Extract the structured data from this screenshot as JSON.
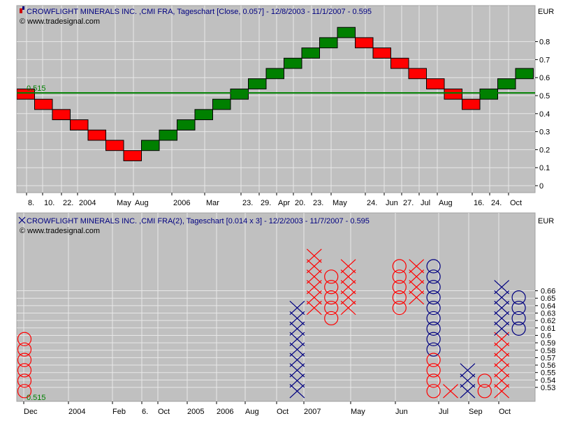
{
  "chart_data": [
    {
      "type": "renko",
      "title": "CROWFLIGHT MINERALS INC. ,CMI FRA, Tageschart [Close, 0.057] - 12/8/2003 - 11/1/2007 - 0.595",
      "source": "© www.tradesignal.com",
      "currency": "EUR",
      "box_size": 0.057,
      "ylim": [
        0,
        0.9
      ],
      "y_ticks": [
        "0",
        "0.1",
        "0.2",
        "0.3",
        "0.4",
        "0.5",
        "0.6",
        "0.7",
        "0.8"
      ],
      "x_ticks": [
        "8.",
        "10.",
        "22.",
        "2004",
        "May",
        "Aug",
        "2006",
        "Mar",
        "23.",
        "29.",
        "Apr",
        "20.",
        "23.",
        "May",
        "24.",
        "Jun",
        "27.",
        "Jul",
        "Aug",
        "16.",
        "24.",
        "Oct"
      ],
      "reference_line": {
        "value": 0.515,
        "label": "0.515"
      },
      "bricks": [
        {
          "dir": "down",
          "low": 0.48,
          "high": 0.537
        },
        {
          "dir": "down",
          "low": 0.423,
          "high": 0.48
        },
        {
          "dir": "down",
          "low": 0.366,
          "high": 0.423
        },
        {
          "dir": "down",
          "low": 0.309,
          "high": 0.366
        },
        {
          "dir": "down",
          "low": 0.252,
          "high": 0.309
        },
        {
          "dir": "down",
          "low": 0.195,
          "high": 0.252
        },
        {
          "dir": "down",
          "low": 0.138,
          "high": 0.195
        },
        {
          "dir": "up",
          "low": 0.195,
          "high": 0.252
        },
        {
          "dir": "up",
          "low": 0.252,
          "high": 0.309
        },
        {
          "dir": "up",
          "low": 0.309,
          "high": 0.366
        },
        {
          "dir": "up",
          "low": 0.366,
          "high": 0.423
        },
        {
          "dir": "up",
          "low": 0.423,
          "high": 0.48
        },
        {
          "dir": "up",
          "low": 0.48,
          "high": 0.537
        },
        {
          "dir": "up",
          "low": 0.537,
          "high": 0.594
        },
        {
          "dir": "up",
          "low": 0.594,
          "high": 0.651
        },
        {
          "dir": "up",
          "low": 0.651,
          "high": 0.708
        },
        {
          "dir": "up",
          "low": 0.708,
          "high": 0.765
        },
        {
          "dir": "up",
          "low": 0.765,
          "high": 0.822
        },
        {
          "dir": "up",
          "low": 0.822,
          "high": 0.879
        },
        {
          "dir": "down",
          "low": 0.765,
          "high": 0.822
        },
        {
          "dir": "down",
          "low": 0.708,
          "high": 0.765
        },
        {
          "dir": "down",
          "low": 0.651,
          "high": 0.708
        },
        {
          "dir": "down",
          "low": 0.594,
          "high": 0.651
        },
        {
          "dir": "down",
          "low": 0.537,
          "high": 0.594
        },
        {
          "dir": "down",
          "low": 0.48,
          "high": 0.537
        },
        {
          "dir": "down",
          "low": 0.423,
          "high": 0.48
        },
        {
          "dir": "up",
          "low": 0.48,
          "high": 0.537
        },
        {
          "dir": "up",
          "low": 0.537,
          "high": 0.594
        },
        {
          "dir": "up",
          "low": 0.594,
          "high": 0.651
        }
      ]
    },
    {
      "type": "point_and_figure",
      "title": "CROWFLIGHT MINERALS INC. ,CMI FRA(2), Tageschart [0.014 x 3] - 12/2/2003 - 11/7/2007 - 0.595",
      "source": "© www.tradesignal.com",
      "currency": "EUR",
      "box_size": 0.014,
      "reversal": 3,
      "ylim": [
        0.522,
        0.67
      ],
      "y_ticks": [
        "0.53",
        "0.54",
        "0.55",
        "0.56",
        "0.57",
        "0.58",
        "0.59",
        "0.6",
        "0.61",
        "0.62",
        "0.63",
        "0.64",
        "0.65",
        "0.66"
      ],
      "x_ticks": [
        "Dec",
        "2004",
        "Feb",
        "6.",
        "Oct",
        "2005",
        "2006",
        "Aug",
        "Oct",
        "2007",
        "May",
        "Jun",
        "Jul",
        "Sep",
        "Oct"
      ],
      "reference_line": {
        "value": 0.515,
        "label": "0.515"
      },
      "columns": [
        {
          "col": 0,
          "mark": "O",
          "color": "red",
          "top": 0.595,
          "bottom": 0.525
        },
        {
          "col": 16,
          "mark": "X",
          "color": "navy",
          "bottom": 0.525,
          "top": 0.637
        },
        {
          "col": 17,
          "mark": "X",
          "color": "red",
          "bottom": 0.637,
          "top": 0.707
        },
        {
          "col": 18,
          "mark": "O",
          "color": "red",
          "top": 0.679,
          "bottom": 0.623
        },
        {
          "col": 19,
          "mark": "X",
          "color": "red",
          "bottom": 0.637,
          "top": 0.693
        },
        {
          "col": 22,
          "mark": "O",
          "color": "red",
          "top": 0.693,
          "bottom": 0.637
        },
        {
          "col": 23,
          "mark": "X",
          "color": "red",
          "bottom": 0.651,
          "top": 0.693
        },
        {
          "col": 24,
          "mark": "O",
          "color": "navy",
          "top": 0.693,
          "bottom": 0.581
        },
        {
          "col": 24,
          "mark": "O",
          "color": "red",
          "top": 0.567,
          "bottom": 0.525
        },
        {
          "col": 25,
          "mark": "X",
          "color": "red",
          "bottom": 0.525,
          "top": 0.525
        },
        {
          "col": 26,
          "mark": "X",
          "color": "navy",
          "bottom": 0.525,
          "top": 0.553
        },
        {
          "col": 27,
          "mark": "O",
          "color": "red",
          "top": 0.539,
          "bottom": 0.525
        },
        {
          "col": 28,
          "mark": "X",
          "color": "red",
          "bottom": 0.525,
          "top": 0.595
        },
        {
          "col": 28,
          "mark": "X",
          "color": "navy",
          "bottom": 0.609,
          "top": 0.665
        },
        {
          "col": 29,
          "mark": "O",
          "color": "navy",
          "top": 0.651,
          "bottom": 0.609
        }
      ]
    }
  ]
}
